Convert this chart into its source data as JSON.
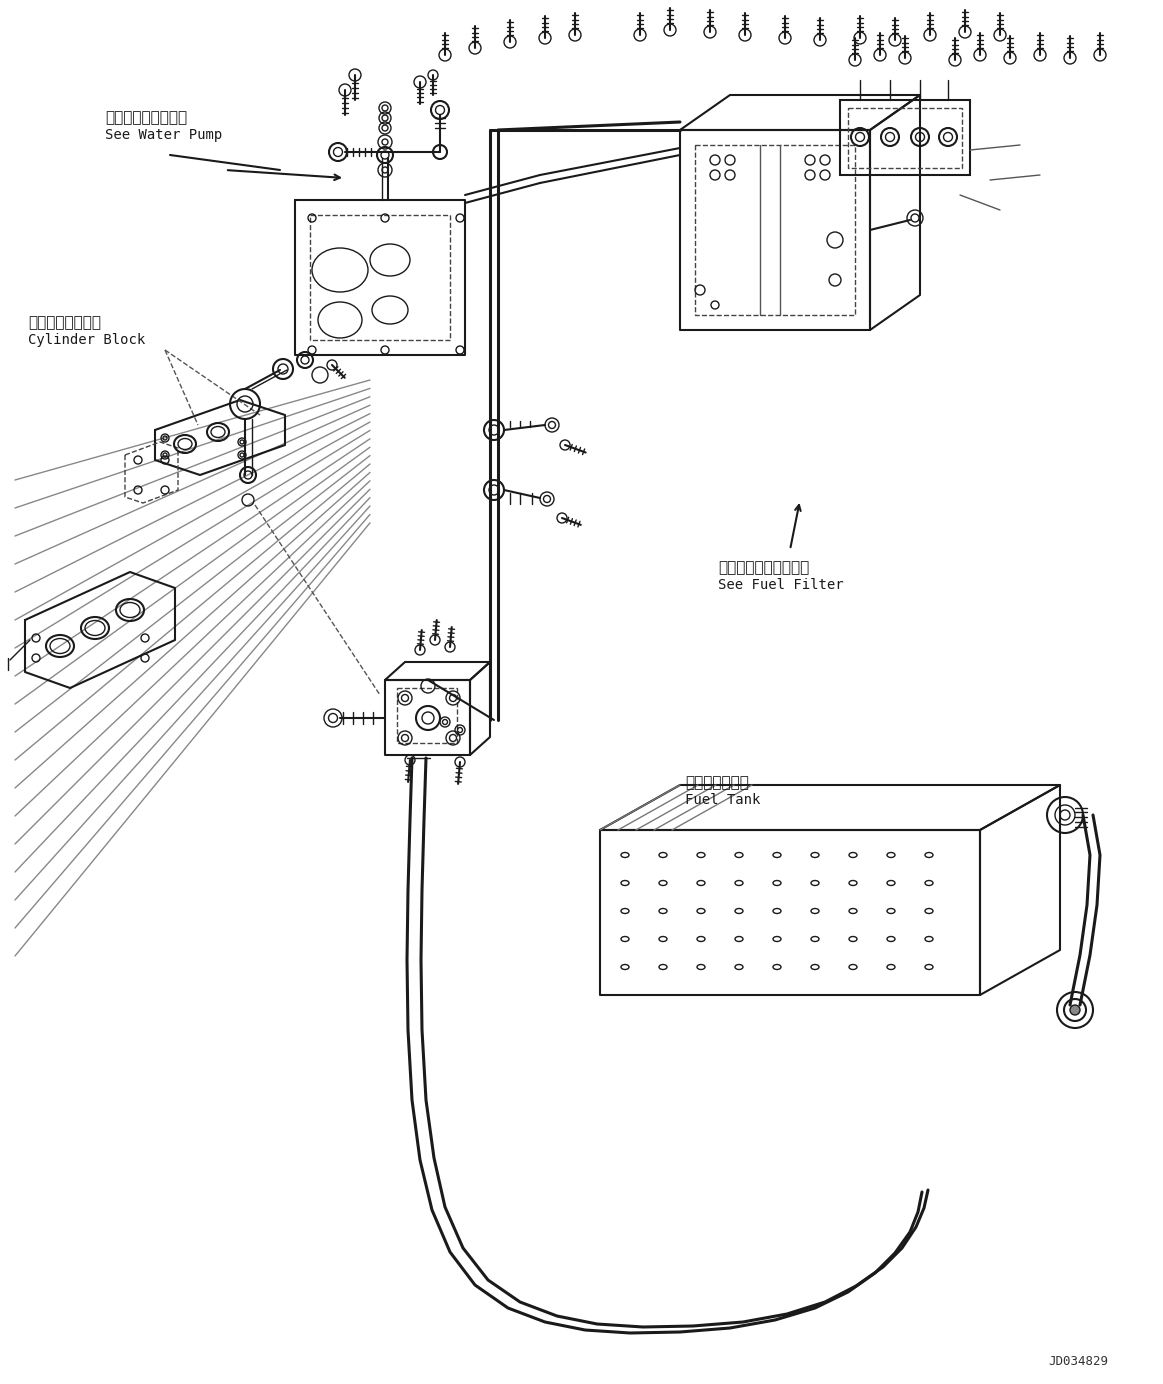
{
  "bg_color": "#ffffff",
  "line_color": "#1a1a1a",
  "title_code": "JD034829",
  "labels": {
    "water_pump_jp": "ウォータポンプ参照",
    "water_pump_en": "See Water Pump",
    "cylinder_block_jp": "シリンダブロック",
    "cylinder_block_en": "Cylinder Block",
    "fuel_filter_jp": "フェエルフィルタ参照",
    "fuel_filter_en": "See Fuel Filter",
    "fuel_tank_jp": "フェエルタンク",
    "fuel_tank_en": "Fuel Tank"
  },
  "figsize": [
    11.63,
    13.84
  ],
  "dpi": 100
}
